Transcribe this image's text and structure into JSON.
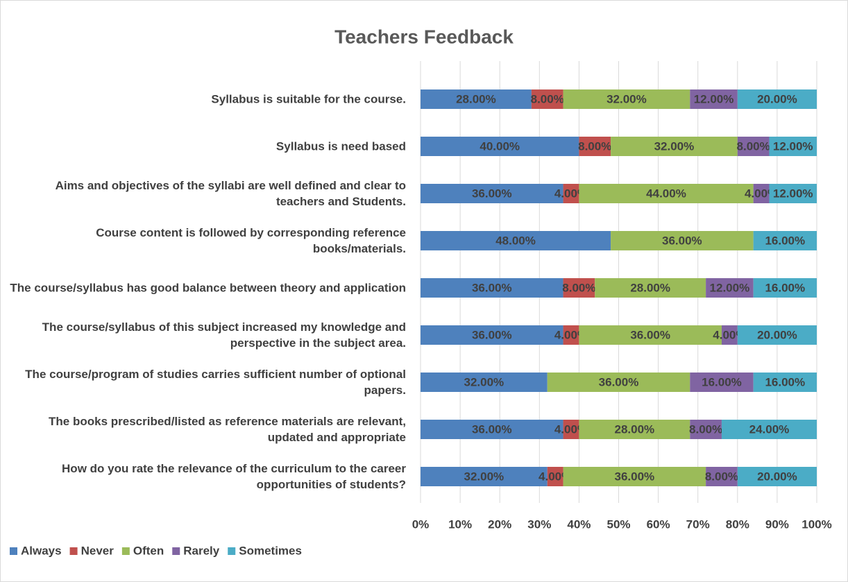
{
  "chart_data": {
    "type": "stacked_bar_horizontal",
    "title": "Teachers Feedback",
    "categories": [
      "Syllabus is suitable for the course.",
      "Syllabus is need based",
      "Aims and objectives of the syllabi are well defined and clear to teachers and Students.",
      "Course content is followed by corresponding reference books/materials.",
      "The course/syllabus has good balance between theory and application",
      "The course/syllabus of this subject increased my knowledge and perspective in the subject area.",
      "The course/program of studies carries sufficient number of optional papers.",
      "The books prescribed/listed as reference materials are relevant, updated and appropriate",
      "How do you rate the relevance of the curriculum to the career opportunities of students?"
    ],
    "series": [
      {
        "name": "Always",
        "color": "#4e81bd",
        "values": [
          28,
          40,
          36,
          48,
          36,
          36,
          32,
          36,
          32
        ],
        "value_labels": [
          "28.00%",
          "40.00%",
          "36.00%",
          "48.00%",
          "36.00%",
          "36.00%",
          "32.00%",
          "36.00%",
          "32.00%"
        ]
      },
      {
        "name": "Never",
        "color": "#c0504d",
        "values": [
          8,
          8,
          4,
          null,
          8,
          4,
          null,
          4,
          4
        ],
        "value_labels": [
          "8.00%",
          "8.00%",
          "4.00%",
          null,
          "8.00%",
          "4.00%",
          null,
          "4.00%",
          "4.00%"
        ]
      },
      {
        "name": "Often",
        "color": "#9bbb59",
        "values": [
          32,
          32,
          44,
          36,
          28,
          36,
          36,
          28,
          36
        ],
        "value_labels": [
          "32.00%",
          "32.00%",
          "44.00%",
          "36.00%",
          "28.00%",
          "36.00%",
          "36.00%",
          "28.00%",
          "36.00%"
        ]
      },
      {
        "name": "Rarely",
        "color": "#8064a2",
        "values": [
          12,
          8,
          4,
          null,
          12,
          4,
          16,
          8,
          8
        ],
        "value_labels": [
          "12.00%",
          "8.00%",
          "4.00%",
          null,
          "12.00%",
          "4.00%",
          "16.00%",
          "8.00%",
          "8.00%"
        ]
      },
      {
        "name": "Sometimes",
        "color": "#4bacc6",
        "values": [
          20,
          12,
          12,
          16,
          16,
          20,
          16,
          24,
          20
        ],
        "value_labels": [
          "20.00%",
          "12.00%",
          "12.00%",
          "16.00%",
          "16.00%",
          "20.00%",
          "16.00%",
          "24.00%",
          "20.00%"
        ]
      }
    ],
    "xlim": [
      0,
      100
    ],
    "xticks": [
      {
        "value": 0,
        "label": "0%"
      },
      {
        "value": 10,
        "label": "10%"
      },
      {
        "value": 20,
        "label": "20%"
      },
      {
        "value": 30,
        "label": "30%"
      },
      {
        "value": 40,
        "label": "40%"
      },
      {
        "value": 50,
        "label": "50%"
      },
      {
        "value": 60,
        "label": "60%"
      },
      {
        "value": 70,
        "label": "70%"
      },
      {
        "value": 80,
        "label": "80%"
      },
      {
        "value": 90,
        "label": "90%"
      },
      {
        "value": 100,
        "label": "100%"
      }
    ],
    "grid": true,
    "legend": "bottom-left"
  }
}
